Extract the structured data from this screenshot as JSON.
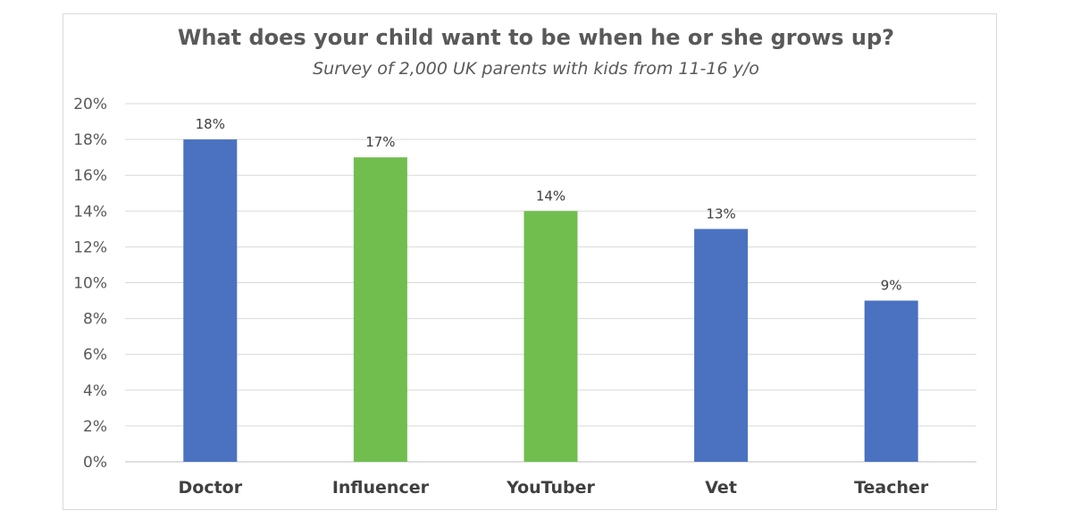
{
  "chart_data": {
    "type": "bar",
    "title": "What does your child want to be when he or she grows up?",
    "subtitle": "Survey of 2,000 UK parents with kids from 11-16 y/o",
    "categories": [
      "Doctor",
      "Influencer",
      "YouTuber",
      "Vet",
      "Teacher"
    ],
    "values": [
      18,
      17,
      14,
      13,
      9
    ],
    "data_labels": [
      "18%",
      "17%",
      "14%",
      "13%",
      "9%"
    ],
    "bar_colors": [
      "#4a72c0",
      "#71be4f",
      "#71be4f",
      "#4a72c0",
      "#4a72c0"
    ],
    "ylim": [
      0,
      20
    ],
    "yticks": [
      "0%",
      "2%",
      "4%",
      "6%",
      "8%",
      "10%",
      "12%",
      "14%",
      "16%",
      "18%",
      "20%"
    ],
    "xlabel": "",
    "ylabel": "",
    "grid": true,
    "legend": "none"
  },
  "colors": {
    "blue": "#4a72c0",
    "green": "#71be4f",
    "grid": "#d9d9d9",
    "text": "#595959"
  }
}
